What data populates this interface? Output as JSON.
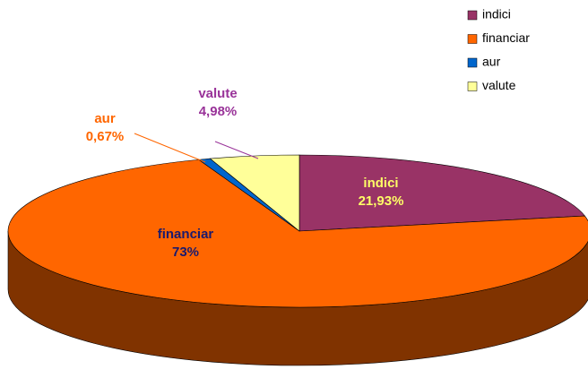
{
  "chart_data": {
    "type": "pie3d",
    "categories": [
      "indici",
      "financiar",
      "aur",
      "valute"
    ],
    "values": [
      21.93,
      73,
      0.67,
      4.98
    ],
    "value_labels": [
      "21,93%",
      "73%",
      "0,67%",
      "4,98%"
    ],
    "colors": [
      "#993366",
      "#FF6600",
      "#0066CC",
      "#FFFF99"
    ],
    "label_colors": [
      "#FFFF66",
      "#1A1A6E",
      "#FF6600",
      "#993399"
    ],
    "legend": "top-right"
  }
}
